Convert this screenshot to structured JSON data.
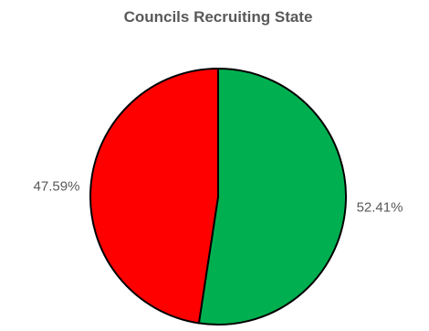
{
  "chart_data": {
    "type": "pie",
    "title": "Councils Recruiting State",
    "slices": [
      {
        "label": "52.41%",
        "value": 52.41,
        "color": "#00B050"
      },
      {
        "label": "47.59%",
        "value": 47.59,
        "color": "#FF0000"
      }
    ],
    "start_angle": "12 o'clock",
    "direction": "clockwise",
    "legend": "none"
  }
}
